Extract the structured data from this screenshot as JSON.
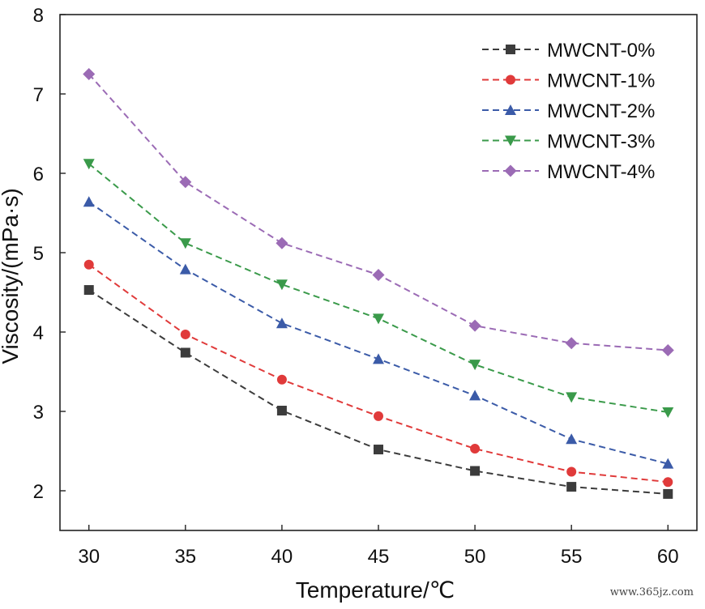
{
  "chart_data": {
    "type": "line",
    "title": "",
    "xlabel": "Temperature/℃",
    "ylabel": "Viscosity/(mPa·s)",
    "x": [
      30,
      35,
      40,
      45,
      50,
      55,
      60
    ],
    "xticks": [
      "30",
      "35",
      "40",
      "45",
      "50",
      "55",
      "60"
    ],
    "yticks": [
      "2",
      "3",
      "4",
      "5",
      "6",
      "7",
      "8"
    ],
    "xlim": [
      28.5,
      61.5
    ],
    "ylim": [
      1.5,
      8
    ],
    "grid": false,
    "legend_position": "top-right",
    "series": [
      {
        "name": "MWCNT-0%",
        "color": "#3c3c3c",
        "marker": "square",
        "values": [
          4.53,
          3.74,
          3.01,
          2.52,
          2.25,
          2.05,
          1.96
        ]
      },
      {
        "name": "MWCNT-1%",
        "color": "#e03a3a",
        "marker": "circle",
        "values": [
          4.85,
          3.97,
          3.4,
          2.94,
          2.53,
          2.24,
          2.11
        ]
      },
      {
        "name": "MWCNT-2%",
        "color": "#3b5ba8",
        "marker": "triangle-up",
        "values": [
          5.64,
          4.79,
          4.11,
          3.66,
          3.2,
          2.65,
          2.34
        ]
      },
      {
        "name": "MWCNT-3%",
        "color": "#3a9a4a",
        "marker": "triangle-down",
        "values": [
          6.12,
          5.12,
          4.6,
          4.17,
          3.59,
          3.18,
          2.99
        ]
      },
      {
        "name": "MWCNT-4%",
        "color": "#9b6bb5",
        "marker": "diamond",
        "values": [
          7.25,
          5.89,
          5.12,
          4.72,
          4.08,
          3.86,
          3.77
        ]
      }
    ]
  },
  "watermark": "www.365jz.com"
}
